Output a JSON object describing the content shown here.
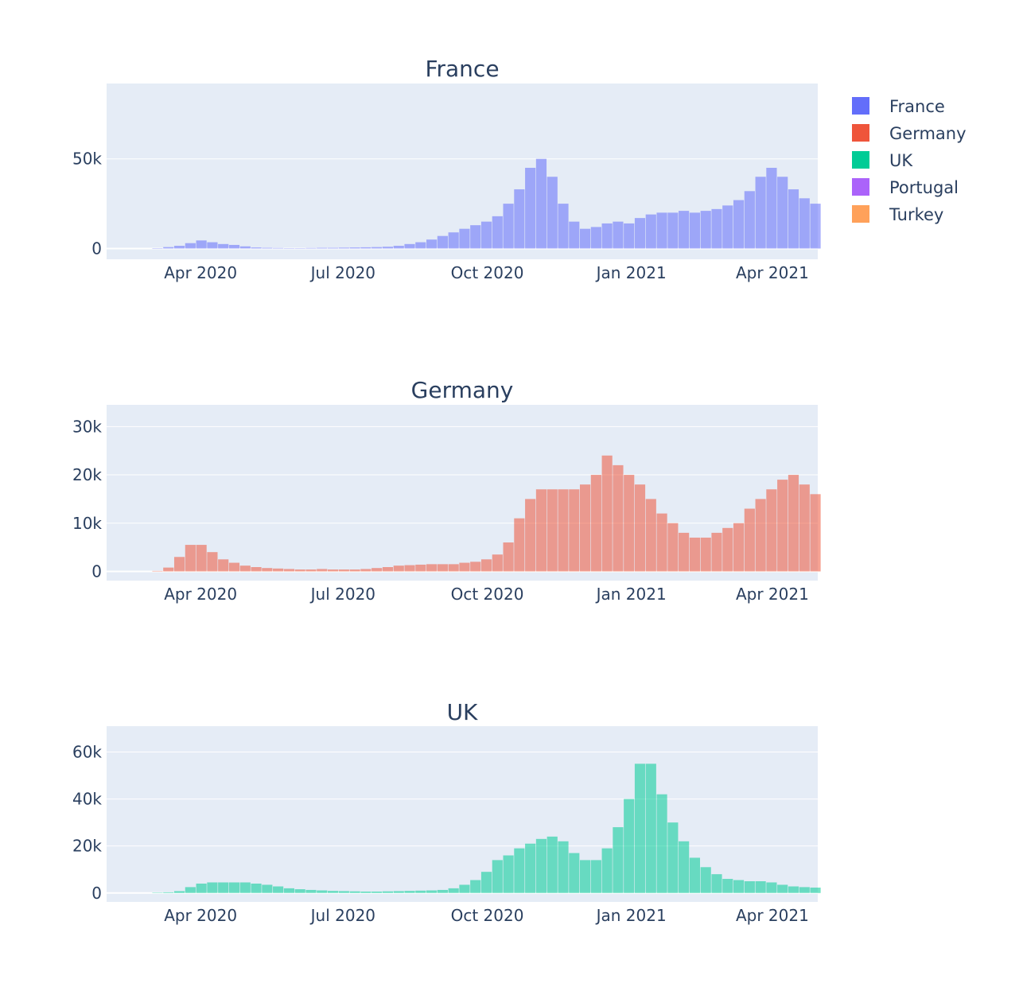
{
  "colors": {
    "France": "#636efa",
    "Germany": "#ef553b",
    "UK": "#00cc96",
    "Portugal": "#ab63fa",
    "Turkey": "#ffa15a",
    "plot_bg": "#e5ecf6",
    "text": "#2a3f5f"
  },
  "legend": {
    "placement": "top-right",
    "items": [
      "France",
      "Germany",
      "UK",
      "Portugal",
      "Turkey"
    ]
  },
  "chart_data": [
    {
      "type": "bar",
      "title": "France",
      "x_range": [
        "2020-02-01",
        "2021-04-30"
      ],
      "ylim": [
        -6000,
        92000
      ],
      "yticks": [
        0,
        50000
      ],
      "ytick_labels": [
        "0",
        "50k"
      ],
      "xticks": [
        "2020-04-01",
        "2020-07-01",
        "2020-10-01",
        "2021-01-01",
        "2021-04-01"
      ],
      "xtick_labels": [
        "Apr 2020",
        "Jul 2020",
        "Oct 2020",
        "Jan 2021",
        "Apr 2021"
      ],
      "grid": true,
      "series": [
        {
          "name": "France",
          "weekly_start": [
            "2020-02-01",
            "2020-02-08",
            "2020-02-15",
            "2020-02-22",
            "2020-03-01",
            "2020-03-08",
            "2020-03-15",
            "2020-03-22",
            "2020-03-29",
            "2020-04-05",
            "2020-04-12",
            "2020-04-19",
            "2020-04-26",
            "2020-05-03",
            "2020-05-10",
            "2020-05-17",
            "2020-05-24",
            "2020-05-31",
            "2020-06-07",
            "2020-06-14",
            "2020-06-21",
            "2020-06-28",
            "2020-07-05",
            "2020-07-12",
            "2020-07-19",
            "2020-07-26",
            "2020-08-02",
            "2020-08-09",
            "2020-08-16",
            "2020-08-23",
            "2020-08-30",
            "2020-09-06",
            "2020-09-13",
            "2020-09-20",
            "2020-09-27",
            "2020-10-04",
            "2020-10-11",
            "2020-10-18",
            "2020-10-25",
            "2020-11-01",
            "2020-11-08",
            "2020-11-15",
            "2020-11-22",
            "2020-11-29",
            "2020-12-06",
            "2020-12-13",
            "2020-12-20",
            "2020-12-27",
            "2021-01-03",
            "2021-01-10",
            "2021-01-17",
            "2021-01-24",
            "2021-01-31",
            "2021-02-07",
            "2021-02-14",
            "2021-02-21",
            "2021-02-28",
            "2021-03-07",
            "2021-03-14",
            "2021-03-21",
            "2021-03-28",
            "2021-04-04",
            "2021-04-11",
            "2021-04-18",
            "2021-04-25"
          ],
          "values": [
            0,
            0,
            0,
            0,
            200,
            800,
            1500,
            3000,
            4500,
            3500,
            2500,
            2000,
            1200,
            600,
            400,
            300,
            200,
            200,
            300,
            400,
            400,
            500,
            600,
            700,
            800,
            1000,
            1500,
            2500,
            3500,
            5000,
            7000,
            9000,
            11000,
            13000,
            15000,
            18000,
            25000,
            33000,
            45000,
            50000,
            40000,
            25000,
            15000,
            11000,
            12000,
            14000,
            15000,
            14000,
            17000,
            19000,
            20000,
            20000,
            21000,
            20000,
            21000,
            22000,
            24000,
            27000,
            32000,
            40000,
            45000,
            40000,
            33000,
            28000,
            25000
          ]
        }
      ]
    },
    {
      "type": "bar",
      "title": "Germany",
      "x_range": [
        "2020-02-01",
        "2021-04-30"
      ],
      "ylim": [
        -1900,
        34500
      ],
      "yticks": [
        0,
        10000,
        20000,
        30000
      ],
      "ytick_labels": [
        "0",
        "10k",
        "20k",
        "30k"
      ],
      "xticks": [
        "2020-04-01",
        "2020-07-01",
        "2020-10-01",
        "2021-01-01",
        "2021-04-01"
      ],
      "xtick_labels": [
        "Apr 2020",
        "Jul 2020",
        "Oct 2020",
        "Jan 2021",
        "Apr 2021"
      ],
      "grid": true,
      "series": [
        {
          "name": "Germany",
          "weekly_start": [
            "2020-02-01",
            "2020-02-08",
            "2020-02-15",
            "2020-02-22",
            "2020-03-01",
            "2020-03-08",
            "2020-03-15",
            "2020-03-22",
            "2020-03-29",
            "2020-04-05",
            "2020-04-12",
            "2020-04-19",
            "2020-04-26",
            "2020-05-03",
            "2020-05-10",
            "2020-05-17",
            "2020-05-24",
            "2020-05-31",
            "2020-06-07",
            "2020-06-14",
            "2020-06-21",
            "2020-06-28",
            "2020-07-05",
            "2020-07-12",
            "2020-07-19",
            "2020-07-26",
            "2020-08-02",
            "2020-08-09",
            "2020-08-16",
            "2020-08-23",
            "2020-08-30",
            "2020-09-06",
            "2020-09-13",
            "2020-09-20",
            "2020-09-27",
            "2020-10-04",
            "2020-10-11",
            "2020-10-18",
            "2020-10-25",
            "2020-11-01",
            "2020-11-08",
            "2020-11-15",
            "2020-11-22",
            "2020-11-29",
            "2020-12-06",
            "2020-12-13",
            "2020-12-20",
            "2020-12-27",
            "2021-01-03",
            "2021-01-10",
            "2021-01-17",
            "2021-01-24",
            "2021-01-31",
            "2021-02-07",
            "2021-02-14",
            "2021-02-21",
            "2021-02-28",
            "2021-03-07",
            "2021-03-14",
            "2021-03-21",
            "2021-03-28",
            "2021-04-04",
            "2021-04-11",
            "2021-04-18",
            "2021-04-25"
          ],
          "values": [
            0,
            0,
            0,
            0,
            100,
            800,
            3000,
            5500,
            5500,
            4000,
            2500,
            1800,
            1200,
            900,
            700,
            600,
            500,
            400,
            400,
            500,
            400,
            400,
            400,
            500,
            700,
            900,
            1200,
            1300,
            1400,
            1500,
            1500,
            1500,
            1800,
            2000,
            2500,
            3500,
            6000,
            11000,
            15000,
            17000,
            17000,
            17000,
            17000,
            18000,
            20000,
            24000,
            22000,
            20000,
            18000,
            15000,
            12000,
            10000,
            8000,
            7000,
            7000,
            8000,
            9000,
            10000,
            13000,
            15000,
            17000,
            19000,
            20000,
            18000,
            16000
          ]
        }
      ]
    },
    {
      "type": "bar",
      "title": "UK",
      "x_range": [
        "2020-02-01",
        "2021-04-30"
      ],
      "ylim": [
        -3800,
        71000
      ],
      "yticks": [
        0,
        20000,
        40000,
        60000
      ],
      "ytick_labels": [
        "0",
        "20k",
        "40k",
        "60k"
      ],
      "xticks": [
        "2020-04-01",
        "2020-07-01",
        "2020-10-01",
        "2021-01-01",
        "2021-04-01"
      ],
      "xtick_labels": [
        "Apr 2020",
        "Jul 2020",
        "Oct 2020",
        "Jan 2021",
        "Apr 2021"
      ],
      "grid": true,
      "series": [
        {
          "name": "UK",
          "weekly_start": [
            "2020-02-01",
            "2020-02-08",
            "2020-02-15",
            "2020-02-22",
            "2020-03-01",
            "2020-03-08",
            "2020-03-15",
            "2020-03-22",
            "2020-03-29",
            "2020-04-05",
            "2020-04-12",
            "2020-04-19",
            "2020-04-26",
            "2020-05-03",
            "2020-05-10",
            "2020-05-17",
            "2020-05-24",
            "2020-05-31",
            "2020-06-07",
            "2020-06-14",
            "2020-06-21",
            "2020-06-28",
            "2020-07-05",
            "2020-07-12",
            "2020-07-19",
            "2020-07-26",
            "2020-08-02",
            "2020-08-09",
            "2020-08-16",
            "2020-08-23",
            "2020-08-30",
            "2020-09-06",
            "2020-09-13",
            "2020-09-20",
            "2020-09-27",
            "2020-10-04",
            "2020-10-11",
            "2020-10-18",
            "2020-10-25",
            "2020-11-01",
            "2020-11-08",
            "2020-11-15",
            "2020-11-22",
            "2020-11-29",
            "2020-12-06",
            "2020-12-13",
            "2020-12-20",
            "2020-12-27",
            "2021-01-03",
            "2021-01-10",
            "2021-01-17",
            "2021-01-24",
            "2021-01-31",
            "2021-02-07",
            "2021-02-14",
            "2021-02-21",
            "2021-02-28",
            "2021-03-07",
            "2021-03-14",
            "2021-03-21",
            "2021-03-28",
            "2021-04-04",
            "2021-04-11",
            "2021-04-18",
            "2021-04-25"
          ],
          "values": [
            0,
            0,
            0,
            0,
            100,
            300,
            800,
            2500,
            4000,
            4500,
            4500,
            4500,
            4500,
            4000,
            3500,
            2800,
            2000,
            1600,
            1300,
            1100,
            900,
            800,
            700,
            600,
            600,
            700,
            800,
            900,
            1000,
            1100,
            1300,
            2000,
            3500,
            5500,
            9000,
            14000,
            16000,
            19000,
            21000,
            23000,
            24000,
            22000,
            17000,
            14000,
            14000,
            19000,
            28000,
            40000,
            55000,
            55000,
            42000,
            30000,
            22000,
            15000,
            11000,
            8000,
            6000,
            5500,
            5000,
            5000,
            4500,
            3500,
            2800,
            2500,
            2300
          ]
        }
      ]
    }
  ]
}
